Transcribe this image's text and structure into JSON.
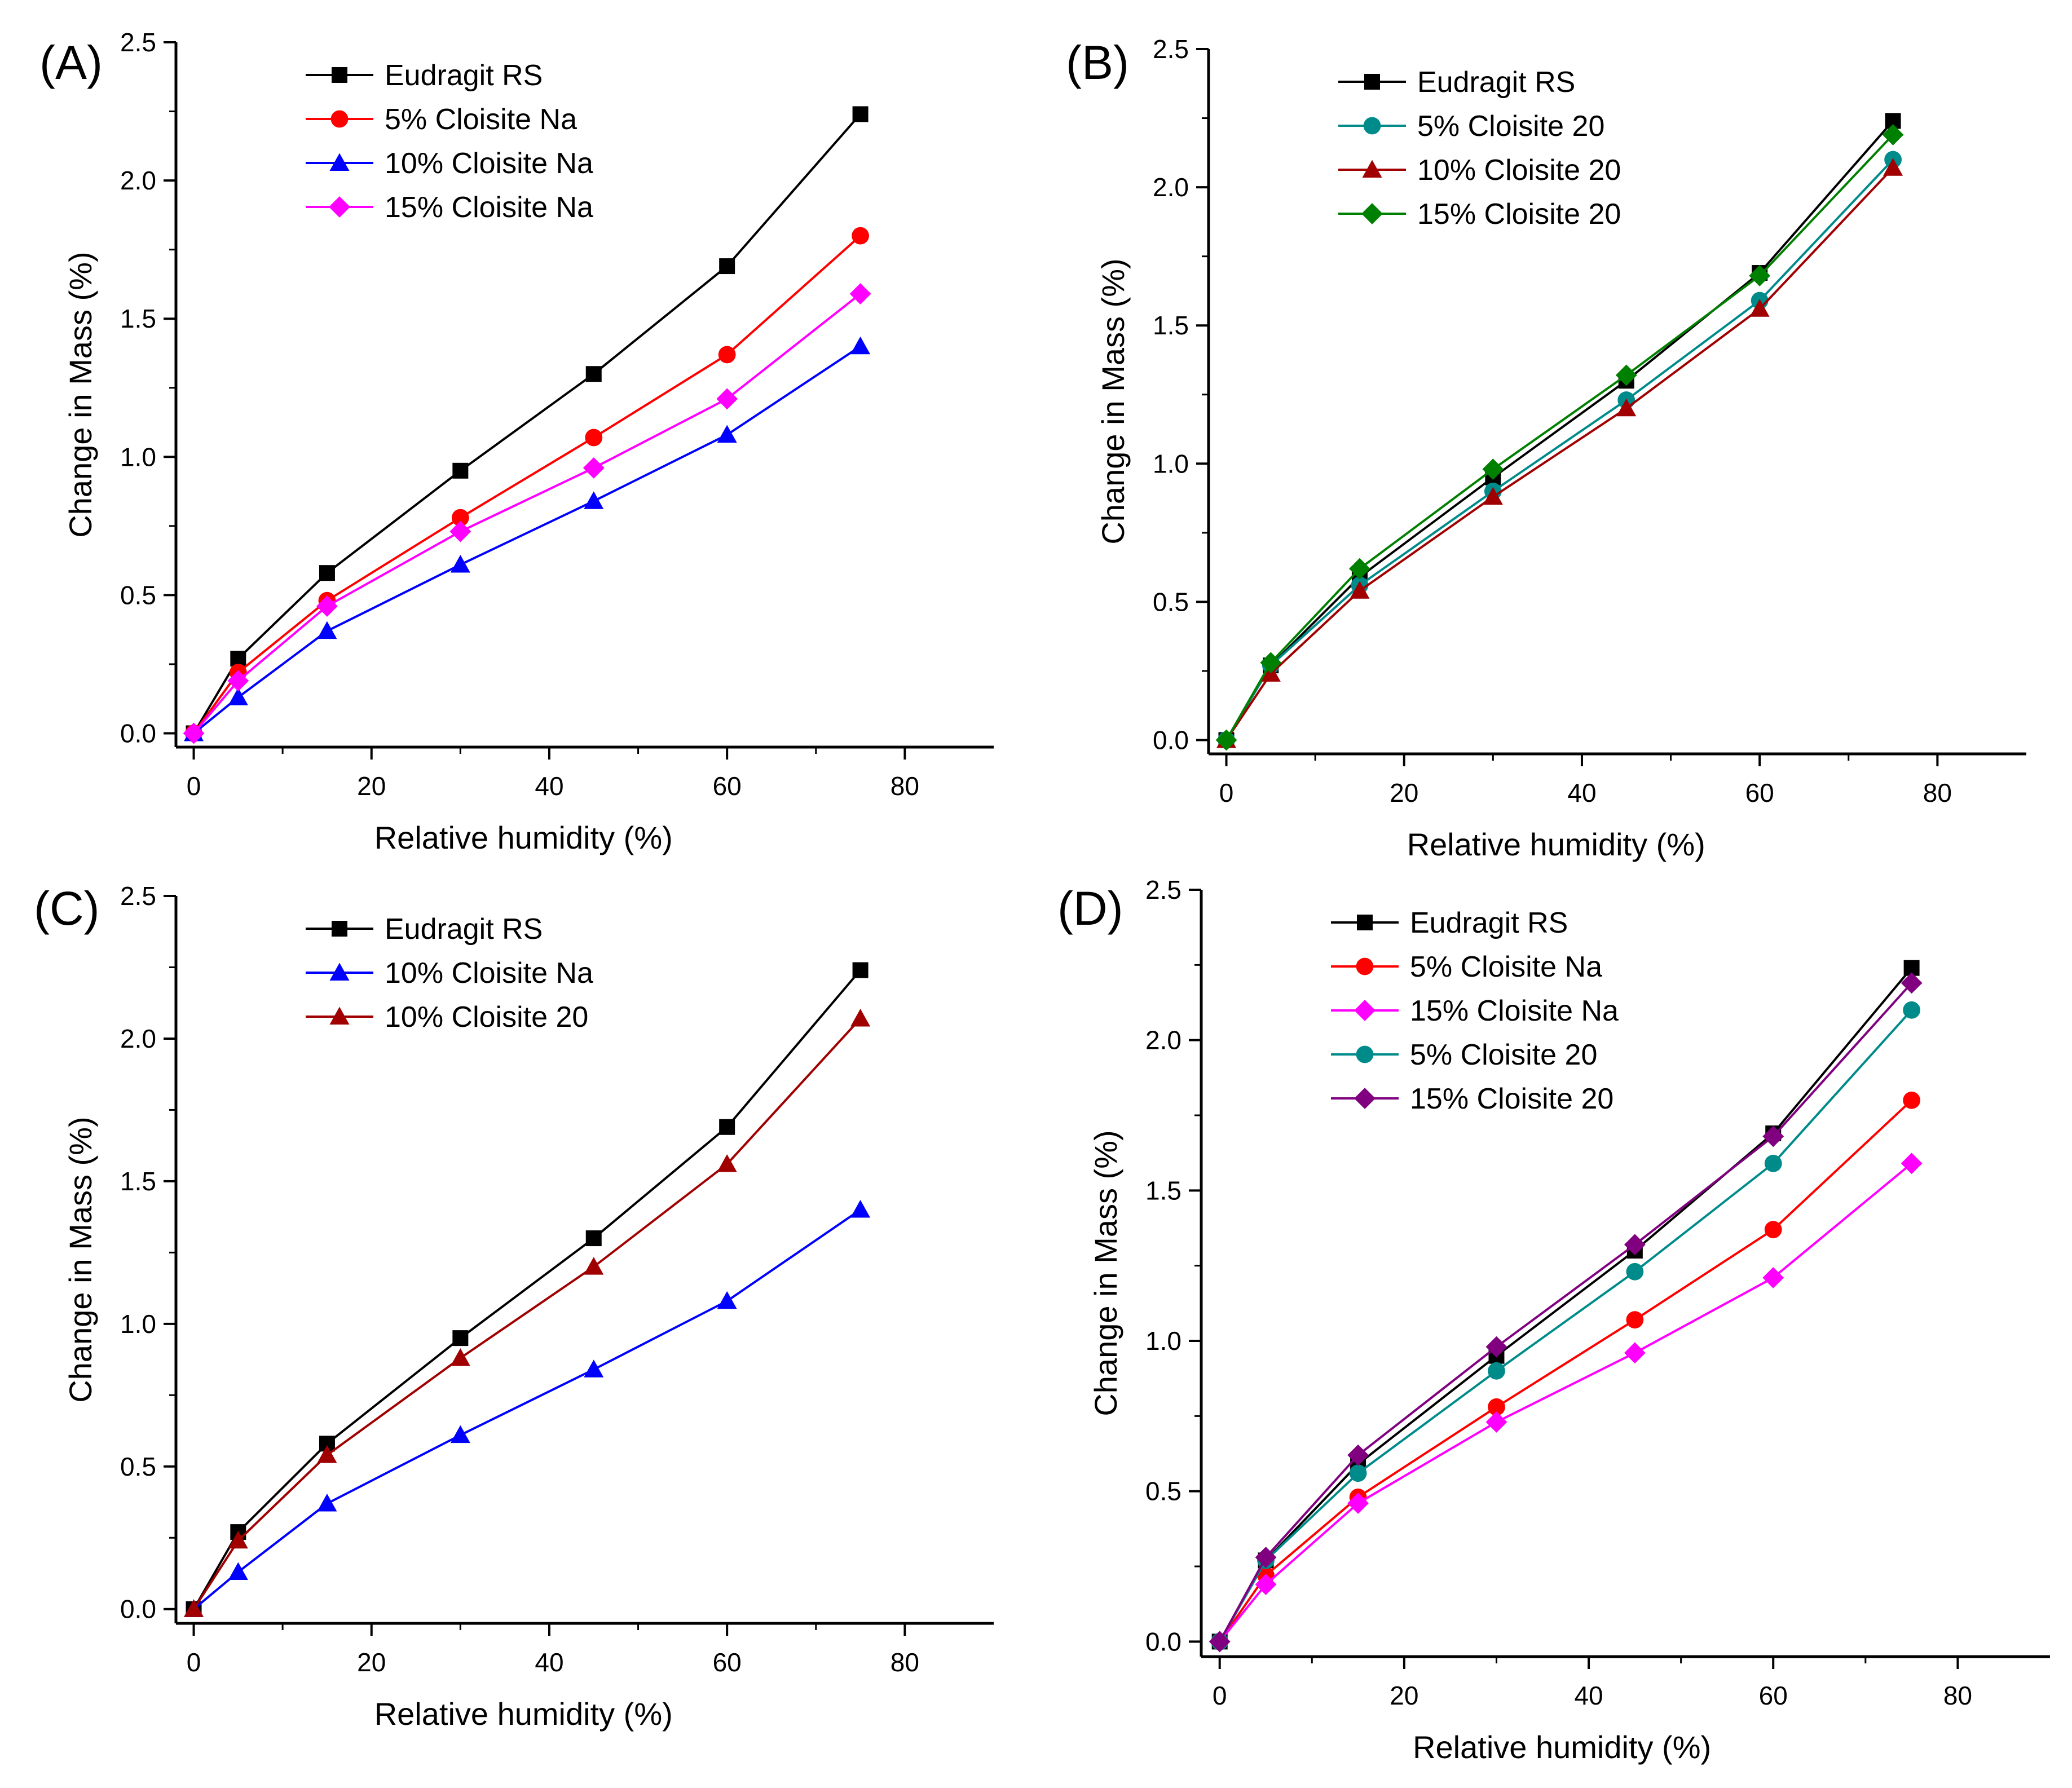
{
  "chart_data": [
    {
      "type": "line",
      "panel_label": "(A)",
      "xlabel": "Relative humidity (%)",
      "ylabel": "Change in Mass (%)",
      "xlim": [
        -2,
        90
      ],
      "ylim": [
        -0.05,
        2.5
      ],
      "xticks": [
        0,
        20,
        40,
        60,
        80
      ],
      "yticks": [
        "0.0",
        "0.5",
        "1.0",
        "1.5",
        "2.0",
        "2.5"
      ],
      "grid": false,
      "legend_position": "top-left",
      "x": [
        0,
        5,
        15,
        30,
        45,
        60,
        75
      ],
      "series": [
        {
          "name": "Eudragit RS",
          "marker": "square",
          "color": "#000000",
          "values": [
            0,
            0.27,
            0.58,
            0.95,
            1.3,
            1.69,
            2.24
          ]
        },
        {
          "name": "5% Cloisite Na",
          "marker": "circle",
          "color": "#ff0000",
          "values": [
            0,
            0.22,
            0.48,
            0.78,
            1.07,
            1.37,
            1.8
          ]
        },
        {
          "name": "10% Cloisite Na",
          "marker": "triangle",
          "color": "#0000ff",
          "values": [
            0,
            0.13,
            0.37,
            0.61,
            0.84,
            1.08,
            1.4
          ]
        },
        {
          "name": "15% Cloisite Na",
          "marker": "diamond",
          "color": "#ff00ff",
          "values": [
            0,
            0.19,
            0.46,
            0.73,
            0.96,
            1.21,
            1.59
          ]
        }
      ]
    },
    {
      "type": "line",
      "panel_label": "(B)",
      "xlabel": "Relative humidity (%)",
      "ylabel": "Change in Mass (%)",
      "xlim": [
        -2,
        90
      ],
      "ylim": [
        -0.05,
        2.5
      ],
      "xticks": [
        0,
        20,
        40,
        60,
        80
      ],
      "yticks": [
        "0.0",
        "0.5",
        "1.0",
        "1.5",
        "2.0",
        "2.5"
      ],
      "grid": false,
      "legend_position": "top-left",
      "x": [
        0,
        5,
        15,
        30,
        45,
        60,
        75
      ],
      "series": [
        {
          "name": "Eudragit RS",
          "marker": "square",
          "color": "#000000",
          "values": [
            0,
            0.27,
            0.59,
            0.95,
            1.3,
            1.69,
            2.24
          ]
        },
        {
          "name": "5% Cloisite 20",
          "marker": "circle",
          "color": "#008b8b",
          "values": [
            0,
            0.27,
            0.56,
            0.9,
            1.23,
            1.59,
            2.1
          ]
        },
        {
          "name": "10% Cloisite 20",
          "marker": "triangle",
          "color": "#a00000",
          "values": [
            0,
            0.24,
            0.54,
            0.88,
            1.2,
            1.56,
            2.07
          ]
        },
        {
          "name": "15% Cloisite 20",
          "marker": "diamond",
          "color": "#008000",
          "values": [
            0,
            0.28,
            0.62,
            0.98,
            1.32,
            1.68,
            2.19
          ]
        }
      ]
    },
    {
      "type": "line",
      "panel_label": "(C)",
      "xlabel": "Relative humidity (%)",
      "ylabel": "Change in Mass (%)",
      "xlim": [
        -2,
        90
      ],
      "ylim": [
        -0.05,
        2.5
      ],
      "xticks": [
        0,
        20,
        40,
        60,
        80
      ],
      "yticks": [
        "0.0",
        "0.5",
        "1.0",
        "1.5",
        "2.0",
        "2.5"
      ],
      "grid": false,
      "legend_position": "top-left",
      "x": [
        0,
        5,
        15,
        30,
        45,
        60,
        75
      ],
      "series": [
        {
          "name": "Eudragit RS",
          "marker": "square",
          "color": "#000000",
          "values": [
            0,
            0.27,
            0.58,
            0.95,
            1.3,
            1.69,
            2.24
          ]
        },
        {
          "name": "10% Cloisite Na",
          "marker": "triangle",
          "color": "#0000ff",
          "values": [
            0,
            0.13,
            0.37,
            0.61,
            0.84,
            1.08,
            1.4
          ]
        },
        {
          "name": "10% Cloisite 20",
          "marker": "triangle",
          "color": "#a00000",
          "values": [
            0,
            0.24,
            0.54,
            0.88,
            1.2,
            1.56,
            2.07
          ]
        }
      ]
    },
    {
      "type": "line",
      "panel_label": "(D)",
      "xlabel": "Relative humidity (%)",
      "ylabel": "Change in Mass (%)",
      "xlim": [
        -2,
        90
      ],
      "ylim": [
        -0.05,
        2.5
      ],
      "xticks": [
        0,
        20,
        40,
        60,
        80
      ],
      "yticks": [
        "0.0",
        "0.5",
        "1.0",
        "1.5",
        "2.0",
        "2.5"
      ],
      "grid": false,
      "legend_position": "top-left",
      "x": [
        0,
        5,
        15,
        30,
        45,
        60,
        75
      ],
      "series": [
        {
          "name": "Eudragit RS",
          "marker": "square",
          "color": "#000000",
          "values": [
            0,
            0.27,
            0.59,
            0.95,
            1.3,
            1.69,
            2.24
          ]
        },
        {
          "name": "5% Cloisite Na",
          "marker": "circle",
          "color": "#ff0000",
          "values": [
            0,
            0.22,
            0.48,
            0.78,
            1.07,
            1.37,
            1.8
          ]
        },
        {
          "name": "15% Cloisite Na",
          "marker": "diamond",
          "color": "#ff00ff",
          "values": [
            0,
            0.19,
            0.46,
            0.73,
            0.96,
            1.21,
            1.59
          ]
        },
        {
          "name": "5% Cloisite 20",
          "marker": "circle",
          "color": "#008b8b",
          "values": [
            0,
            0.27,
            0.56,
            0.9,
            1.23,
            1.59,
            2.1
          ]
        },
        {
          "name": "15% Cloisite 20",
          "marker": "diamond",
          "color": "#800080",
          "values": [
            0,
            0.28,
            0.62,
            0.98,
            1.32,
            1.68,
            2.19
          ]
        }
      ]
    }
  ]
}
